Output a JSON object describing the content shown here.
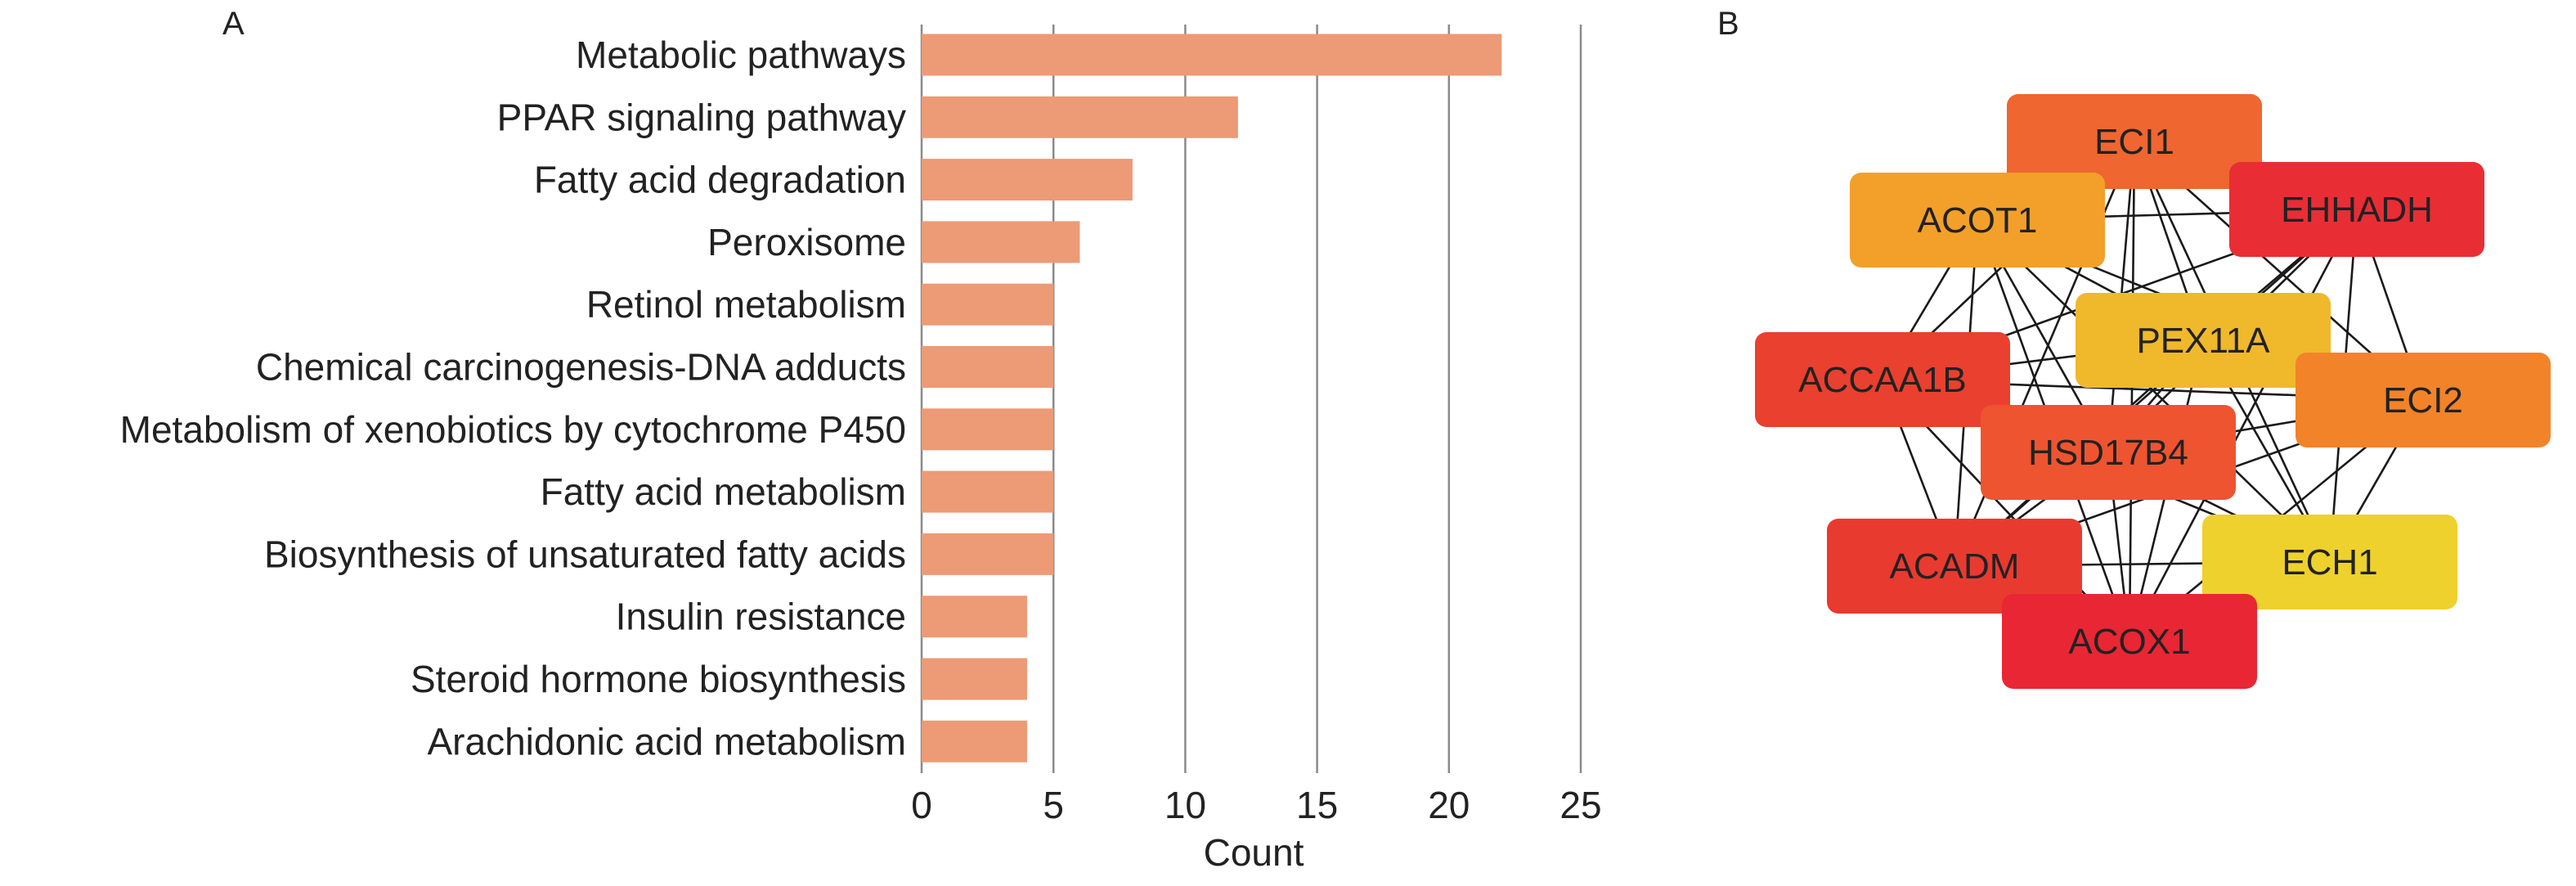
{
  "panel_a": {
    "letter": "A"
  },
  "panel_b": {
    "letter": "B"
  },
  "chart_data": {
    "type": "bar",
    "orientation": "horizontal",
    "categories": [
      "Metabolic pathways",
      "PPAR signaling pathway",
      "Fatty acid degradation",
      "Peroxisome",
      "Retinol metabolism",
      "Chemical carcinogenesis-DNA adducts",
      "Metabolism of xenobiotics by cytochrome P450",
      "Fatty acid metabolism",
      "Biosynthesis of unsaturated fatty acids",
      "Insulin resistance",
      "Steroid hormone biosynthesis",
      "Arachidonic acid metabolism"
    ],
    "values": [
      22,
      12,
      8,
      6,
      5,
      5,
      5,
      5,
      5,
      4,
      4,
      4
    ],
    "title": "",
    "xlabel": "Count",
    "ylabel": "",
    "xlim": [
      0,
      25
    ],
    "xticks": [
      0,
      5,
      10,
      15,
      20,
      25
    ],
    "bar_color": "#ed9a76",
    "grid": "vertical"
  },
  "network": {
    "nodes": [
      {
        "id": "ECI1",
        "label": "ECI1",
        "color": "#ef6630"
      },
      {
        "id": "ACOT1",
        "label": "ACOT1",
        "color": "#f2a02a"
      },
      {
        "id": "EHHADH",
        "label": "EHHADH",
        "color": "#e92d35"
      },
      {
        "id": "PEX11A",
        "label": "PEX11A",
        "color": "#f0b82b"
      },
      {
        "id": "ACCAA1B",
        "label": "ACCAA1B",
        "color": "#e9402f"
      },
      {
        "id": "ECI2",
        "label": "ECI2",
        "color": "#f28329"
      },
      {
        "id": "HSD17B4",
        "label": "HSD17B4",
        "color": "#ee5430"
      },
      {
        "id": "ACADM",
        "label": "ACADM",
        "color": "#e93a30"
      },
      {
        "id": "ECH1",
        "label": "ECH1",
        "color": "#eed12c"
      },
      {
        "id": "ACOX1",
        "label": "ACOX1",
        "color": "#e92634"
      }
    ],
    "edges": [
      [
        "ECI1",
        "ACOT1"
      ],
      [
        "ECI1",
        "EHHADH"
      ],
      [
        "ECI1",
        "PEX11A"
      ],
      [
        "ECI1",
        "ACCAA1B"
      ],
      [
        "ECI1",
        "ECI2"
      ],
      [
        "ECI1",
        "HSD17B4"
      ],
      [
        "ECI1",
        "ACADM"
      ],
      [
        "ECI1",
        "ECH1"
      ],
      [
        "ECI1",
        "ACOX1"
      ],
      [
        "ACOT1",
        "EHHADH"
      ],
      [
        "ACOT1",
        "PEX11A"
      ],
      [
        "ACOT1",
        "ACCAA1B"
      ],
      [
        "ACOT1",
        "ECI2"
      ],
      [
        "ACOT1",
        "HSD17B4"
      ],
      [
        "ACOT1",
        "ACADM"
      ],
      [
        "ACOT1",
        "ECH1"
      ],
      [
        "ACOT1",
        "ACOX1"
      ],
      [
        "EHHADH",
        "PEX11A"
      ],
      [
        "EHHADH",
        "ACCAA1B"
      ],
      [
        "EHHADH",
        "ECI2"
      ],
      [
        "EHHADH",
        "HSD17B4"
      ],
      [
        "EHHADH",
        "ACADM"
      ],
      [
        "EHHADH",
        "ECH1"
      ],
      [
        "EHHADH",
        "ACOX1"
      ],
      [
        "PEX11A",
        "ACCAA1B"
      ],
      [
        "PEX11A",
        "ECI2"
      ],
      [
        "PEX11A",
        "HSD17B4"
      ],
      [
        "PEX11A",
        "ACADM"
      ],
      [
        "PEX11A",
        "ECH1"
      ],
      [
        "PEX11A",
        "ACOX1"
      ],
      [
        "ACCAA1B",
        "ECI2"
      ],
      [
        "ACCAA1B",
        "HSD17B4"
      ],
      [
        "ACCAA1B",
        "ACADM"
      ],
      [
        "ACCAA1B",
        "ECH1"
      ],
      [
        "ACCAA1B",
        "ACOX1"
      ],
      [
        "ECI2",
        "HSD17B4"
      ],
      [
        "ECI2",
        "ACADM"
      ],
      [
        "ECI2",
        "ECH1"
      ],
      [
        "ECI2",
        "ACOX1"
      ],
      [
        "HSD17B4",
        "ACADM"
      ],
      [
        "HSD17B4",
        "ECH1"
      ],
      [
        "HSD17B4",
        "ACOX1"
      ],
      [
        "ACADM",
        "ECH1"
      ],
      [
        "ACADM",
        "ACOX1"
      ],
      [
        "ECH1",
        "ACOX1"
      ]
    ]
  }
}
